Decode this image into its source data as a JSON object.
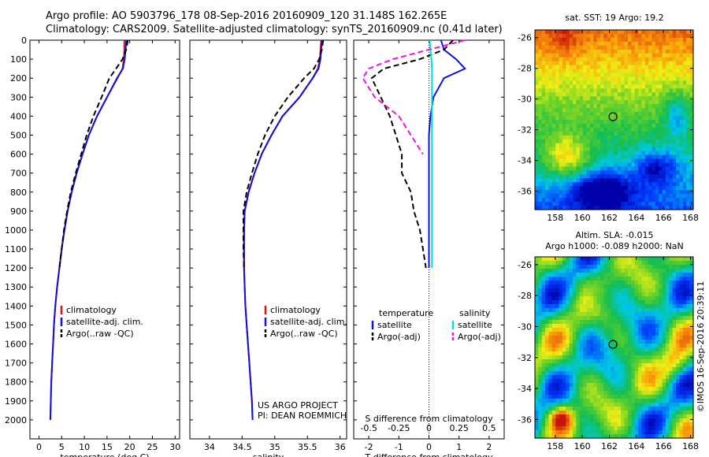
{
  "header": {
    "line1": "Argo profile: AO 5903796_178 08-Sep-2016 20160909_120 31.148S 162.265E",
    "line2": "Climatology: CARS2009. Satellite-adjusted climatology: synTS_20160909.nc (0.41d later)"
  },
  "colors": {
    "climatology": "#e01010",
    "satellite": "#1010e0",
    "argo": "#000000",
    "sal_satellite": "#00e0e0",
    "sal_argo": "#ee10ee"
  },
  "chart_data": [
    {
      "type": "line",
      "id": "temperature-profile",
      "xlabel": "temperature (deg C)",
      "ylabel": "",
      "xlim": [
        -2,
        31
      ],
      "ylim": [
        2100,
        0
      ],
      "xticks": [
        0,
        5,
        10,
        15,
        20,
        25,
        30
      ],
      "yticks": [
        0,
        100,
        200,
        300,
        400,
        500,
        600,
        700,
        800,
        900,
        1000,
        1100,
        1200,
        1300,
        1400,
        1500,
        1600,
        1700,
        1800,
        1900,
        2000
      ],
      "legend": [
        "climatology",
        "satellite-adj. clim.",
        "Argo(..raw -QC)"
      ],
      "series": [
        {
          "name": "climatology",
          "style": "solid",
          "color": "#e01010",
          "x": [
            18.8,
            18.8,
            18.7,
            18.4,
            17.3,
            15.0,
            12.8,
            11.0,
            9.6,
            8.3,
            7.2,
            6.3,
            5.6,
            5.0,
            4.5,
            4.0,
            3.6,
            3.3,
            3.1,
            2.9,
            2.7,
            2.6,
            2.5
          ],
          "y": [
            0,
            50,
            100,
            150,
            200,
            300,
            400,
            500,
            600,
            700,
            800,
            900,
            1000,
            1100,
            1200,
            1300,
            1400,
            1500,
            1600,
            1700,
            1800,
            1900,
            2000
          ]
        },
        {
          "name": "satellite-adj. clim.",
          "style": "solid",
          "color": "#1010e0",
          "x": [
            19.2,
            19.1,
            18.9,
            18.5,
            17.2,
            15.0,
            12.8,
            11.0,
            9.6,
            8.3,
            7.2,
            6.3,
            5.6,
            5.0,
            4.5,
            4.0,
            3.6,
            3.3,
            3.1,
            2.9,
            2.7,
            2.6,
            2.5
          ],
          "y": [
            0,
            50,
            100,
            150,
            200,
            300,
            400,
            500,
            600,
            700,
            800,
            900,
            1000,
            1100,
            1200,
            1300,
            1400,
            1500,
            1600,
            1700,
            1800,
            1900,
            2000
          ]
        },
        {
          "name": "Argo(..raw -QC)",
          "style": "dash",
          "color": "#000000",
          "x": [
            19.6,
            19.2,
            18.4,
            17.0,
            15.5,
            13.8,
            12.0,
            10.5,
            9.3,
            8.1,
            7.0,
            6.2,
            5.5,
            5.0,
            4.5
          ],
          "y": [
            0,
            50,
            100,
            150,
            200,
            300,
            400,
            500,
            600,
            700,
            800,
            900,
            1000,
            1100,
            1200
          ]
        }
      ]
    },
    {
      "type": "line",
      "id": "salinity-profile",
      "xlabel": "salinity",
      "ylabel": "",
      "xlim": [
        33.7,
        36.1
      ],
      "ylim": [
        2100,
        0
      ],
      "xticks": [
        34,
        34.5,
        35,
        35.5,
        36
      ],
      "legend": [
        "climatology",
        "satellite-adj. clim.",
        "Argo(..raw -QC)"
      ],
      "annotation": [
        "US ARGO PROJECT",
        "PI: DEAN ROEMMICH"
      ],
      "series": [
        {
          "name": "climatology",
          "style": "solid",
          "color": "#e01010",
          "x": [
            35.71,
            35.7,
            35.69,
            35.66,
            35.58,
            35.38,
            35.12,
            34.95,
            34.8,
            34.69,
            34.6,
            34.54,
            34.53,
            34.53,
            34.53,
            34.54,
            34.55,
            34.57,
            34.59,
            34.61,
            34.63,
            34.65,
            34.66
          ],
          "y": [
            0,
            50,
            100,
            150,
            200,
            300,
            400,
            500,
            600,
            700,
            800,
            900,
            1000,
            1100,
            1200,
            1300,
            1400,
            1500,
            1600,
            1700,
            1800,
            1900,
            2000
          ]
        },
        {
          "name": "satellite-adj. clim.",
          "style": "solid",
          "color": "#1010e0",
          "x": [
            35.72,
            35.71,
            35.7,
            35.67,
            35.58,
            35.38,
            35.12,
            34.95,
            34.8,
            34.69,
            34.6,
            34.54,
            34.53,
            34.53,
            34.53,
            34.54,
            34.55,
            34.57,
            34.59,
            34.61,
            34.63,
            34.65,
            34.66
          ],
          "y": [
            0,
            50,
            100,
            150,
            200,
            300,
            400,
            500,
            600,
            700,
            800,
            900,
            1000,
            1100,
            1200,
            1300,
            1400,
            1500,
            1600,
            1700,
            1800,
            1900,
            2000
          ]
        },
        {
          "name": "Argo(..raw -QC)",
          "style": "dash",
          "color": "#000000",
          "x": [
            35.74,
            35.72,
            35.68,
            35.6,
            35.45,
            35.2,
            35.0,
            34.85,
            34.74,
            34.65,
            34.57,
            34.52,
            34.52,
            34.52,
            34.53
          ],
          "y": [
            0,
            50,
            100,
            150,
            200,
            300,
            400,
            500,
            600,
            700,
            800,
            900,
            1000,
            1100,
            1200
          ]
        }
      ]
    },
    {
      "type": "line",
      "id": "difference-profile",
      "xlabel": "T difference from climatology",
      "xlabel_top": "S difference from climatology",
      "xlim": [
        -2.5,
        2.5
      ],
      "ylim": [
        2100,
        0
      ],
      "xticks": [
        -2,
        -1,
        0,
        1,
        2
      ],
      "xticklabels_top": [
        "-0.5",
        "-0.25",
        "0",
        "0.25",
        "0.5"
      ],
      "legend_title_left": "temperature",
      "legend_title_right": "salinity",
      "legend": [
        "satellite",
        "Argo(-adj)",
        "satellite",
        "Argo(-adj)"
      ],
      "series": [
        {
          "name": "satellite",
          "group": "temperature",
          "style": "solid",
          "color": "#1010e0",
          "x": [
            0.4,
            0.5,
            0.9,
            1.2,
            0.5,
            0.15,
            0.05,
            0,
            0,
            0,
            0,
            0,
            0,
            0
          ],
          "y": [
            0,
            50,
            100,
            150,
            200,
            300,
            400,
            500,
            600,
            700,
            800,
            900,
            1000,
            1200
          ]
        },
        {
          "name": "Argo(-adj)",
          "group": "temperature",
          "style": "dash",
          "color": "#000000",
          "x": [
            0.8,
            0.5,
            -0.3,
            -1.5,
            -1.9,
            -1.6,
            -1.3,
            -1.1,
            -0.9,
            -0.9,
            -0.6,
            -0.5,
            -0.3,
            -0.2,
            -0.1
          ],
          "y": [
            0,
            50,
            100,
            150,
            200,
            300,
            400,
            500,
            600,
            700,
            800,
            900,
            1000,
            1100,
            1200
          ]
        },
        {
          "name": "satellite",
          "group": "salinity",
          "style": "solid",
          "color": "#00e0e0",
          "x": [
            0.02,
            0.05,
            0.08,
            0.1,
            0.1,
            0.1,
            0.1,
            0.1,
            0.1,
            0.1,
            0.1,
            0.1,
            0.1,
            0.1
          ],
          "y": [
            0,
            50,
            100,
            150,
            200,
            300,
            400,
            500,
            600,
            700,
            800,
            900,
            1000,
            1200
          ]
        },
        {
          "name": "Argo(-adj)",
          "group": "salinity",
          "style": "dash",
          "color": "#ee10ee",
          "x": [
            0.3,
            0.0,
            -0.3,
            -0.5,
            -0.55,
            -0.45,
            -0.25,
            -0.15,
            -0.05
          ],
          "y": [
            0,
            50,
            100,
            150,
            200,
            300,
            400,
            500,
            600
          ],
          "x_units": "salinity difference"
        }
      ]
    },
    {
      "type": "heatmap",
      "id": "sst-map",
      "title": "sat. SST: 19 Argo: 19.2",
      "xlim": [
        156.5,
        168.2
      ],
      "ylim": [
        -37.2,
        -25.5
      ],
      "xticks": [
        158,
        160,
        162,
        164,
        166,
        168
      ],
      "yticks": [
        -26,
        -28,
        -30,
        -32,
        -34,
        -36
      ],
      "marker": {
        "lon": 162.27,
        "lat": -31.15
      }
    },
    {
      "type": "heatmap",
      "id": "sla-map",
      "title": "Altim. SLA: -0.015",
      "subtitle": "Argo h1000: -0.089 h2000: NaN",
      "xlim": [
        156.5,
        168.2
      ],
      "ylim": [
        -37.2,
        -25.5
      ],
      "xticks": [
        158,
        160,
        162,
        164,
        166,
        168
      ],
      "yticks": [
        -26,
        -28,
        -30,
        -32,
        -34,
        -36
      ],
      "marker": {
        "lon": 162.27,
        "lat": -31.15
      }
    }
  ],
  "credit": "©IMOS 16-Sep-2016 20:39:11"
}
